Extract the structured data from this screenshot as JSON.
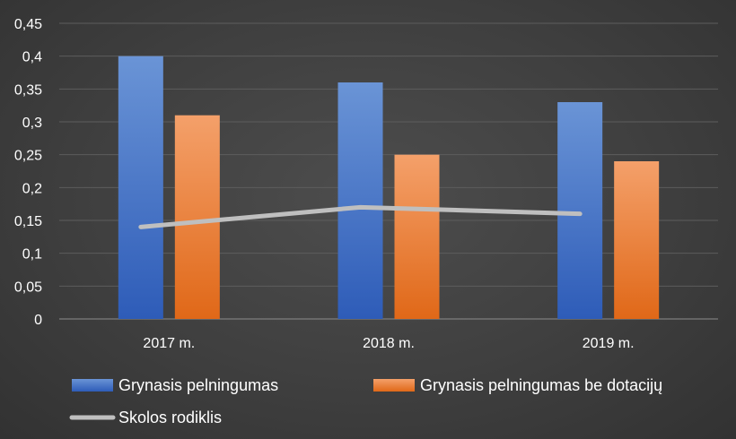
{
  "chart_data": {
    "type": "bar",
    "categories": [
      "2017 m.",
      "2018 m.",
      "2019 m."
    ],
    "series": [
      {
        "name": "Grynasis pelningumas",
        "kind": "bar",
        "values": [
          0.4,
          0.36,
          0.33
        ],
        "color": "#4472c4"
      },
      {
        "name": "Grynasis pelningumas be dotacijų",
        "kind": "bar",
        "values": [
          0.31,
          0.25,
          0.24
        ],
        "color": "#ed7d31"
      },
      {
        "name": "Skolos rodiklis",
        "kind": "line",
        "values": [
          0.14,
          0.17,
          0.16
        ],
        "color": "#bfbfbf"
      }
    ],
    "yticks": [
      "0",
      "0,05",
      "0,1",
      "0,15",
      "0,2",
      "0,25",
      "0,3",
      "0,35",
      "0,4",
      "0,45"
    ],
    "ylim": [
      0,
      0.45
    ],
    "grid": true,
    "legend": "bottom",
    "title": "",
    "xlabel": "",
    "ylabel": ""
  }
}
